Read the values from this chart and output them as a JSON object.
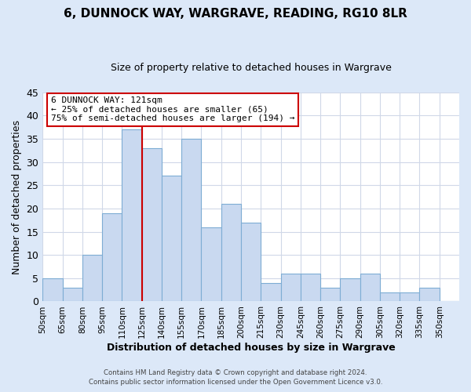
{
  "title": "6, DUNNOCK WAY, WARGRAVE, READING, RG10 8LR",
  "subtitle": "Size of property relative to detached houses in Wargrave",
  "xlabel": "Distribution of detached houses by size in Wargrave",
  "ylabel": "Number of detached properties",
  "bar_labels": [
    "50sqm",
    "65sqm",
    "80sqm",
    "95sqm",
    "110sqm",
    "125sqm",
    "140sqm",
    "155sqm",
    "170sqm",
    "185sqm",
    "200sqm",
    "215sqm",
    "230sqm",
    "245sqm",
    "260sqm",
    "275sqm",
    "290sqm",
    "305sqm",
    "320sqm",
    "335sqm",
    "350sqm"
  ],
  "bar_values": [
    5,
    3,
    10,
    19,
    37,
    33,
    27,
    35,
    16,
    21,
    17,
    4,
    6,
    6,
    3,
    5,
    6,
    2,
    2,
    3,
    0
  ],
  "bar_color": "#c9d9f0",
  "bar_edge_color": "#7eadd4",
  "ylim": [
    0,
    45
  ],
  "yticks": [
    0,
    5,
    10,
    15,
    20,
    25,
    30,
    35,
    40,
    45
  ],
  "vline_color": "#cc0000",
  "annotation_title": "6 DUNNOCK WAY: 121sqm",
  "annotation_line1": "← 25% of detached houses are smaller (65)",
  "annotation_line2": "75% of semi-detached houses are larger (194) →",
  "annotation_box_color": "#ffffff",
  "annotation_box_edge": "#cc0000",
  "footer1": "Contains HM Land Registry data © Crown copyright and database right 2024.",
  "footer2": "Contains public sector information licensed under the Open Government Licence v3.0.",
  "fig_bg_color": "#dce8f8",
  "plot_bg_color": "#ffffff",
  "grid_color": "#d0d8e8"
}
